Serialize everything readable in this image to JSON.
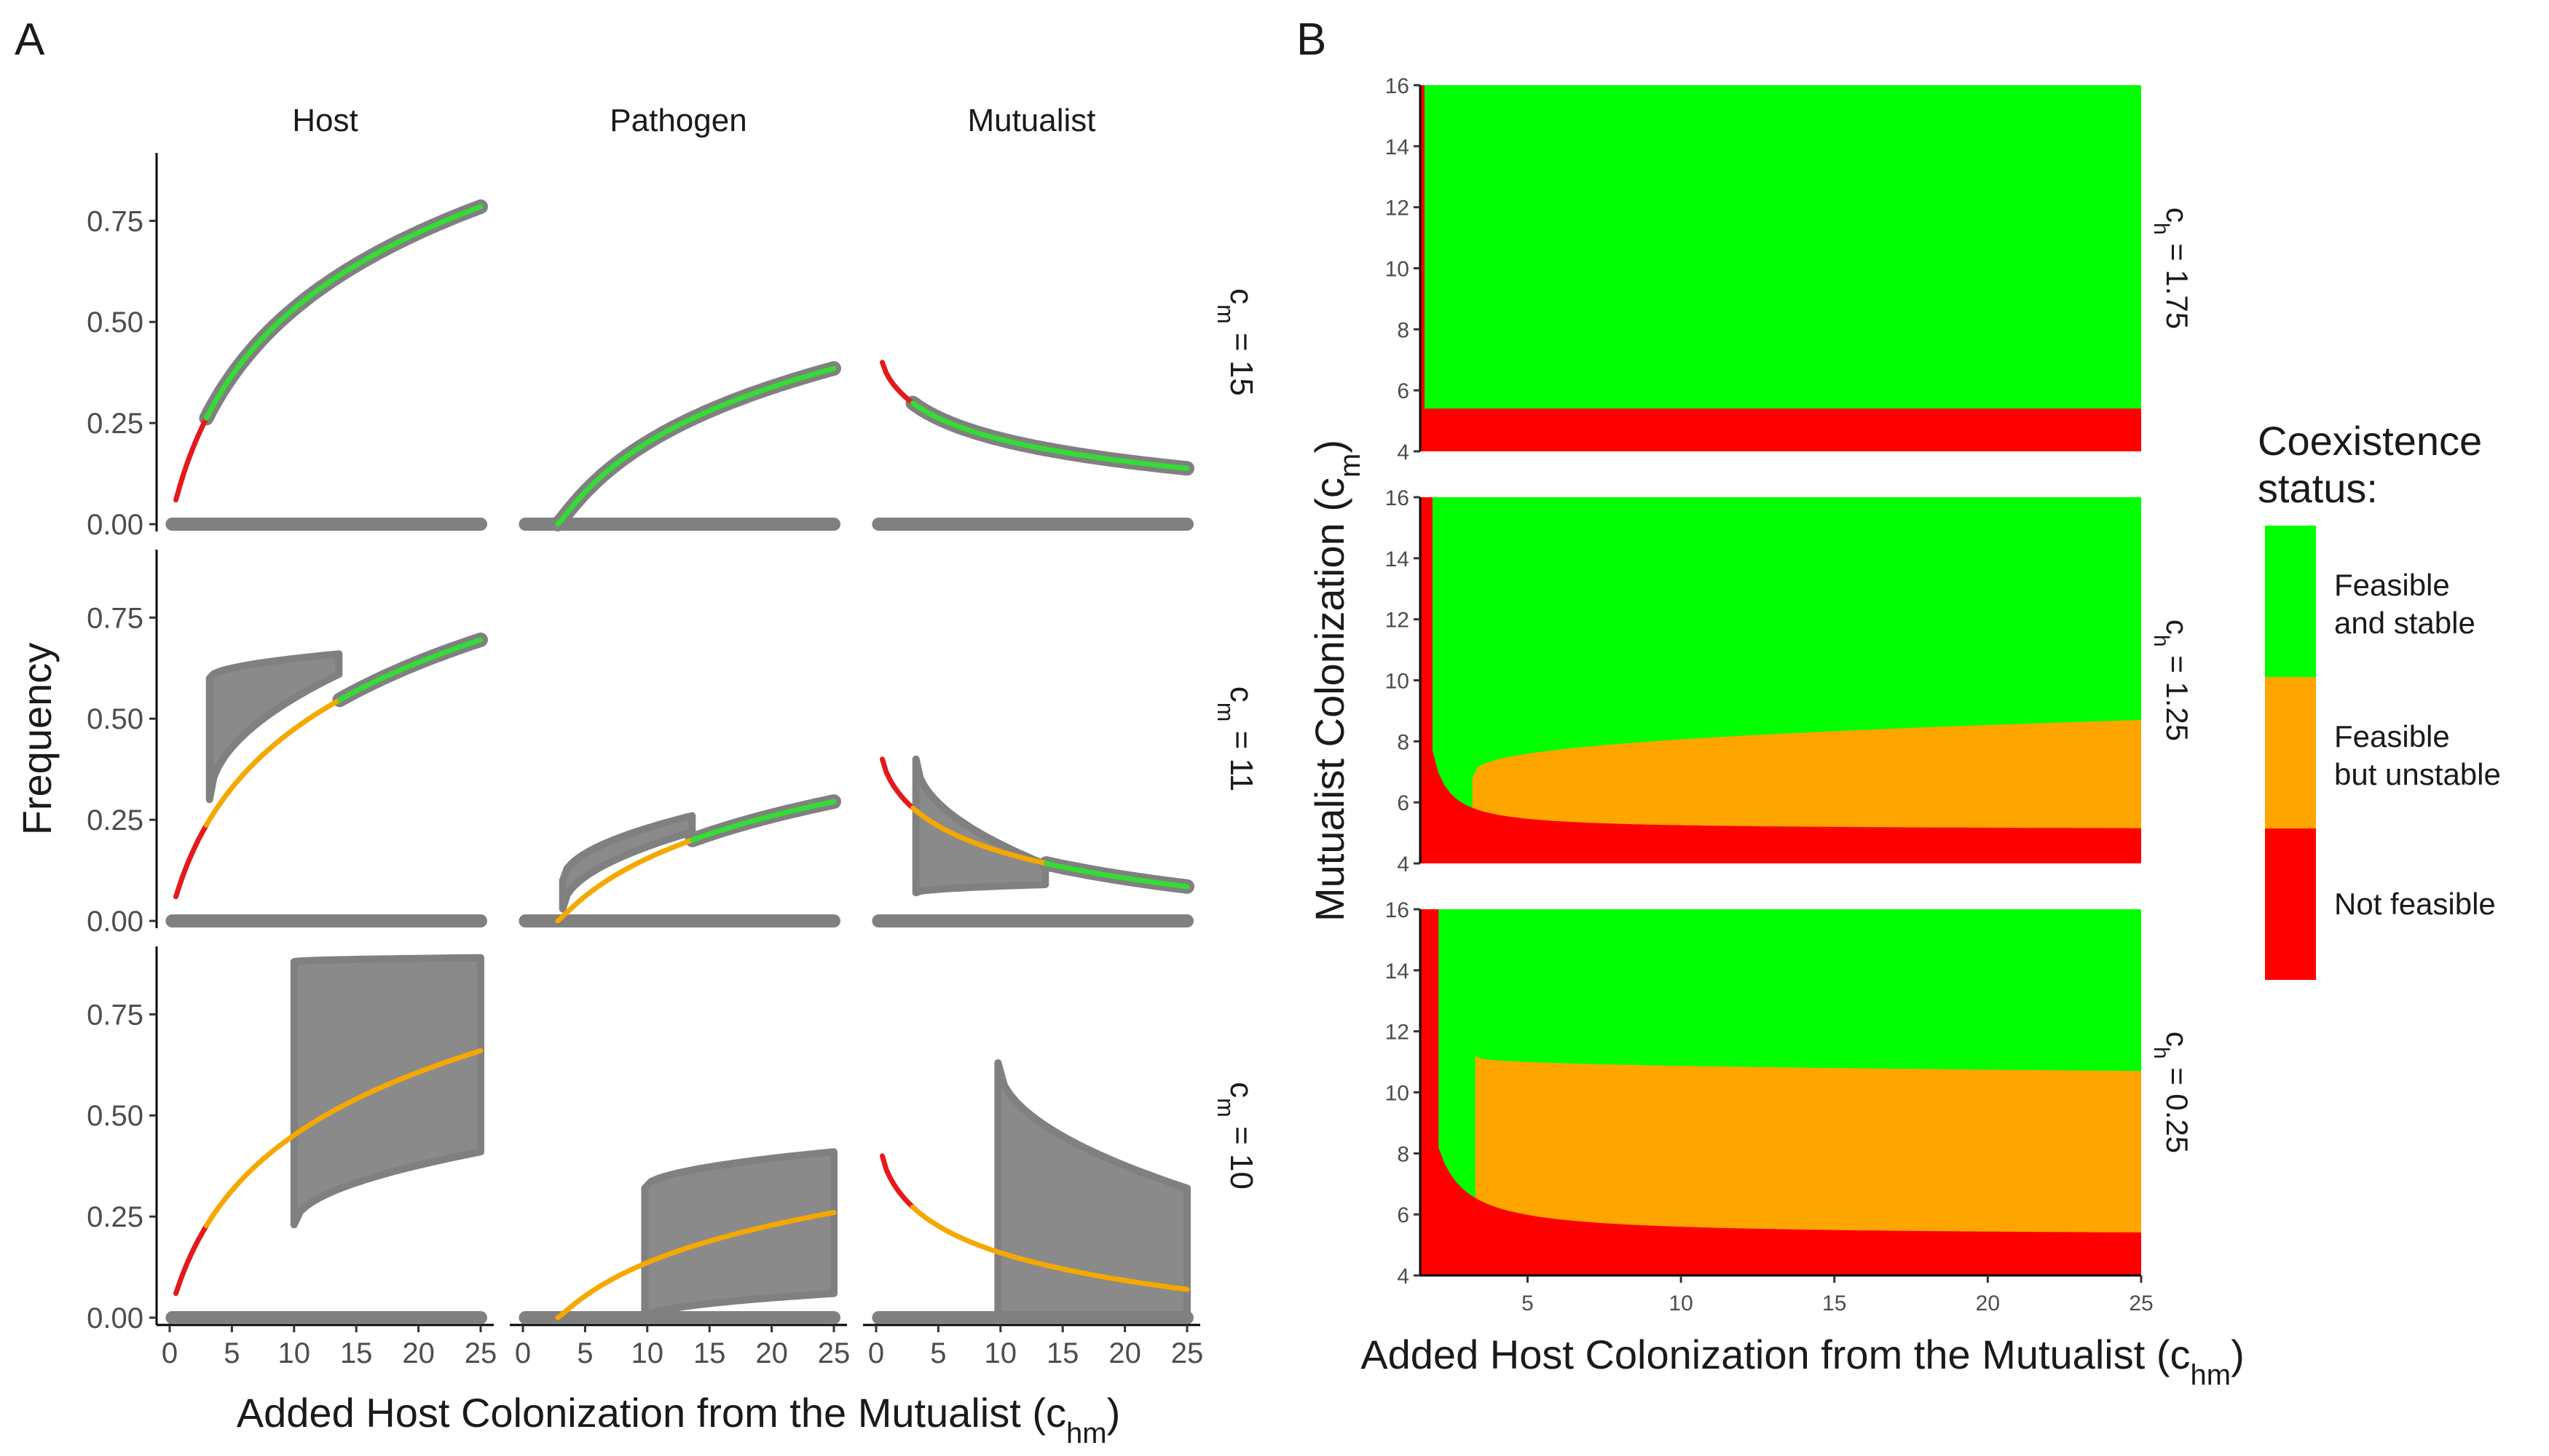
{
  "chart_data": [
    {
      "type": "line",
      "panel_label": "A",
      "xlabel": "Added Host Colonization from the Mutualist (c",
      "xlabel_sub": "hm",
      "xlabel_close": ")",
      "ylabel": "Frequency",
      "column_titles": [
        "Host",
        "Pathogen",
        "Mutualist"
      ],
      "row_titles": [
        {
          "main": "c",
          "sub": "m",
          "rest": " = 15"
        },
        {
          "main": "c",
          "sub": "m",
          "rest": " = 11"
        },
        {
          "main": "c",
          "sub": "m",
          "rest": " = 10"
        }
      ],
      "x_ticks": [
        "0",
        "5",
        "10",
        "15",
        "20",
        "25"
      ],
      "y_ticks": [
        "0.00",
        "0.25",
        "0.50",
        "0.75"
      ],
      "xlim": [
        0,
        25
      ],
      "ylim": [
        0,
        0.9
      ],
      "colors": {
        "not_feasible": "#e31a1c",
        "stable": "#33dd33",
        "unstable": "#f5a800",
        "sim": "#808080"
      },
      "panels": [
        {
          "row": 0,
          "col": 0,
          "x_start": 0.5,
          "x_end": 25,
          "y_start": 0.06,
          "y_end": 0.785,
          "shape": "log",
          "transitions": [
            {
              "x": 2.7,
              "status": "stable"
            }
          ],
          "sim": "zero+line",
          "cloud": null
        },
        {
          "row": 0,
          "col": 1,
          "x_start": 2.8,
          "x_end": 25,
          "y_start": 0.0,
          "y_end": 0.385,
          "shape": "sqrtlog",
          "transitions": [
            {
              "x": 2.8,
              "status": "stable"
            }
          ],
          "sim": "zero+line",
          "cloud": null
        },
        {
          "row": 0,
          "col": 2,
          "x_start": 0.5,
          "x_end": 25,
          "y_start": 0.4,
          "y_end": 0.138,
          "shape": "decay",
          "transitions": [
            {
              "x": 2.7,
              "status": "stable"
            }
          ],
          "sim": "zero+line",
          "cloud": null
        },
        {
          "row": 1,
          "col": 0,
          "x_start": 0.5,
          "x_end": 25,
          "y_start": 0.06,
          "y_end": 0.695,
          "shape": "log",
          "transitions": [
            {
              "x": 2.7,
              "status": "unstable"
            },
            {
              "x": 13.6,
              "status": "stable"
            }
          ],
          "sim": "zero+line",
          "cloud": {
            "x_from": 3.2,
            "x_to": 13.6,
            "y_lo_from": 0.3,
            "y_lo_to": 0.61,
            "y_hi_from": 0.6,
            "y_hi_to": 0.66
          }
        },
        {
          "row": 1,
          "col": 1,
          "x_start": 2.8,
          "x_end": 25,
          "y_start": 0.0,
          "y_end": 0.295,
          "shape": "sqrtlog",
          "transitions": [
            {
              "x": 2.8,
              "status": "unstable"
            },
            {
              "x": 13.6,
              "status": "stable"
            }
          ],
          "sim": "zero+line",
          "cloud": {
            "x_from": 3.2,
            "x_to": 13.6,
            "y_lo_from": 0.03,
            "y_lo_to": 0.22,
            "y_hi_from": 0.1,
            "y_hi_to": 0.26
          }
        },
        {
          "row": 1,
          "col": 2,
          "x_start": 0.5,
          "x_end": 25,
          "y_start": 0.4,
          "y_end": 0.085,
          "shape": "decay",
          "transitions": [
            {
              "x": 2.7,
              "status": "unstable"
            },
            {
              "x": 13.6,
              "status": "stable"
            }
          ],
          "sim": "zero+line",
          "cloud": {
            "x_from": 3.2,
            "x_to": 13.6,
            "y_lo_from": 0.07,
            "y_lo_to": 0.09,
            "y_hi_from": 0.4,
            "y_hi_to": 0.14
          }
        },
        {
          "row": 2,
          "col": 0,
          "x_start": 0.5,
          "x_end": 25,
          "y_start": 0.06,
          "y_end": 0.66,
          "shape": "log",
          "transitions": [
            {
              "x": 2.7,
              "status": "unstable"
            }
          ],
          "sim": "zero",
          "cloud": {
            "x_from": 10,
            "x_to": 25,
            "y_lo_from": 0.23,
            "y_lo_to": 0.41,
            "y_hi_from": 0.88,
            "y_hi_to": 0.89
          }
        },
        {
          "row": 2,
          "col": 1,
          "x_start": 2.8,
          "x_end": 25,
          "y_start": 0.0,
          "y_end": 0.26,
          "shape": "sqrtlog",
          "transitions": [
            {
              "x": 2.8,
              "status": "unstable"
            }
          ],
          "sim": "zero",
          "cloud": {
            "x_from": 9.8,
            "x_to": 25,
            "y_lo_from": 0.0,
            "y_lo_to": 0.06,
            "y_hi_from": 0.32,
            "y_hi_to": 0.41
          }
        },
        {
          "row": 2,
          "col": 2,
          "x_start": 0.5,
          "x_end": 25,
          "y_start": 0.4,
          "y_end": 0.07,
          "shape": "decay",
          "transitions": [
            {
              "x": 2.7,
              "status": "unstable"
            }
          ],
          "sim": "zero",
          "cloud": {
            "x_from": 9.8,
            "x_to": 25,
            "y_lo_from": 0.0,
            "y_lo_to": 0.0,
            "y_hi_from": 0.63,
            "y_hi_to": 0.32
          }
        }
      ]
    },
    {
      "type": "heatmap",
      "panel_label": "B",
      "xlabel": "Added Host Colonization from the Mutualist (c",
      "xlabel_sub": "hm",
      "xlabel_close": ")",
      "ylabel": "Mutualist Colonization (c",
      "ylabel_sub": "m",
      "ylabel_close": ")",
      "x_ticks": [
        "5",
        "10",
        "15",
        "20",
        "25"
      ],
      "y_ticks": [
        "4",
        "6",
        "8",
        "10",
        "12",
        "14",
        "16"
      ],
      "xlim": [
        1.5,
        25
      ],
      "ylim": [
        4,
        16
      ],
      "legend": {
        "title_line1": "Coexistence",
        "title_line2": "status:",
        "items": [
          {
            "line1": "Feasible",
            "line2": "and stable",
            "color": "#00ff00"
          },
          {
            "line1": "Feasible",
            "line2": "but unstable",
            "color": "#ffa500"
          },
          {
            "line1": "Not feasible",
            "line2": "",
            "color": "#ff0000"
          }
        ],
        "position": "right"
      },
      "panels": [
        {
          "row_title": {
            "main": "c",
            "sub": "h",
            "rest": " = 1.75"
          },
          "red_floor": 5.4,
          "red_hyper": {
            "k": 0.0,
            "x0": 1.5
          },
          "red_left_until": 1.6,
          "orange_lower": null,
          "orange_upper": null
        },
        {
          "row_title": {
            "main": "c",
            "sub": "h",
            "rest": " = 1.25"
          },
          "red_floor": 5.1,
          "red_hyper": {
            "k": 1.3,
            "x0": 1.4
          },
          "red_left_until": 1.9,
          "orange_lower": {
            "k": 1.3,
            "x0": 1.4,
            "floor": 5.1
          },
          "orange_upper": {
            "start_x": 3.2,
            "start_y": 6.8,
            "end_y": 8.7
          }
        },
        {
          "row_title": {
            "main": "c",
            "sub": "h",
            "rest": " = 0.25"
          },
          "red_floor": 5.3,
          "red_hyper": {
            "k": 2.6,
            "x0": 1.2
          },
          "red_left_until": 2.1,
          "orange_lower": {
            "k": 2.6,
            "x0": 1.2,
            "floor": 5.3
          },
          "orange_upper": {
            "start_x": 3.3,
            "start_y": 11.2,
            "end_y": 10.7
          }
        }
      ]
    }
  ]
}
